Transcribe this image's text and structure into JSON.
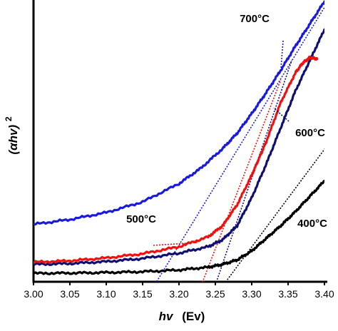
{
  "chart_data": {
    "type": "line",
    "title": "",
    "xlabel": "hv (Ev)",
    "xlabel_main": "hv",
    "xlabel_unit": "(Ev)",
    "ylabel": "(αhv)²",
    "ylabel_main": "(αhv)",
    "ylabel_sup": "2",
    "xlim": [
      3.0,
      3.4
    ],
    "ylim": [
      0,
      1
    ],
    "x_ticks": [
      "3.00",
      "3.05",
      "3.10",
      "3.15",
      "3.20",
      "3.25",
      "3.30",
      "3.35",
      "3.40"
    ],
    "y_ticks_shown": false,
    "grid": false,
    "legend": "none",
    "series": [
      {
        "name": "700°C",
        "color": "#1a1adc",
        "x": [
          3.0,
          3.05,
          3.1,
          3.15,
          3.2,
          3.23,
          3.26,
          3.28,
          3.3,
          3.32,
          3.34,
          3.36,
          3.38,
          3.4
        ],
        "y": [
          0.205,
          0.222,
          0.247,
          0.285,
          0.35,
          0.405,
          0.475,
          0.53,
          0.6,
          0.675,
          0.755,
          0.84,
          0.92,
          1.0
        ]
      },
      {
        "name": "600°C",
        "color": "#10106e",
        "x": [
          3.0,
          3.05,
          3.1,
          3.15,
          3.2,
          3.24,
          3.26,
          3.28,
          3.3,
          3.32,
          3.34,
          3.36,
          3.38,
          3.4
        ],
        "y": [
          0.062,
          0.065,
          0.072,
          0.083,
          0.102,
          0.125,
          0.15,
          0.2,
          0.3,
          0.42,
          0.55,
          0.68,
          0.79,
          0.9
        ]
      },
      {
        "name": "500°C",
        "color": "#ee1111",
        "x": [
          3.0,
          3.05,
          3.1,
          3.15,
          3.2,
          3.24,
          3.26,
          3.28,
          3.3,
          3.31,
          3.32,
          3.34,
          3.36,
          3.37,
          3.38,
          3.39
        ],
        "y": [
          0.07,
          0.075,
          0.085,
          0.1,
          0.125,
          0.16,
          0.2,
          0.275,
          0.38,
          0.44,
          0.5,
          0.64,
          0.745,
          0.78,
          0.8,
          0.795
        ]
      },
      {
        "name": "400°C",
        "color": "#000000",
        "x": [
          3.0,
          3.05,
          3.1,
          3.15,
          3.2,
          3.24,
          3.26,
          3.28,
          3.3,
          3.32,
          3.34,
          3.36,
          3.38,
          3.4
        ],
        "y": [
          0.03,
          0.031,
          0.033,
          0.036,
          0.042,
          0.052,
          0.062,
          0.078,
          0.11,
          0.155,
          0.2,
          0.25,
          0.305,
          0.36
        ]
      }
    ],
    "tangent_lines": [
      {
        "series": "700°C",
        "color": "#1a1adc",
        "x": [
          3.155,
          3.405
        ],
        "y": [
          -0.06,
          1.0
        ]
      },
      {
        "series": "600°C",
        "color": "#10106e",
        "x": [
          3.245,
          3.355
        ],
        "y": [
          -0.05,
          0.79
        ]
      },
      {
        "series": "500°C",
        "color": "#ee1111",
        "x": [
          3.225,
          3.34
        ],
        "y": [
          -0.05,
          0.72
        ]
      },
      {
        "series": "400°C",
        "color": "#000000",
        "x": [
          3.25,
          3.405
        ],
        "y": [
          -0.05,
          0.49
        ]
      }
    ],
    "annotations": [
      {
        "text": "700°C",
        "series": "700°C"
      },
      {
        "text": "600°C",
        "series": "600°C"
      },
      {
        "text": "500°C",
        "series": "500°C"
      },
      {
        "text": "400°C",
        "series": "400°C"
      }
    ]
  }
}
